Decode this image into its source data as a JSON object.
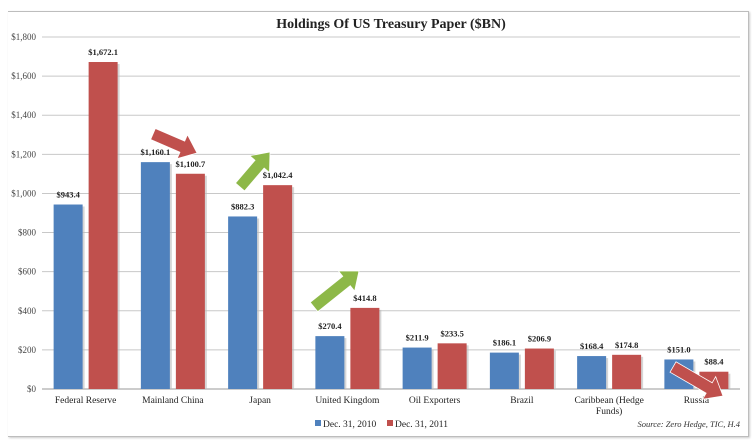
{
  "chart_data": {
    "type": "bar",
    "title": "Holdings Of US Treasury Paper ($BN)",
    "xlabel": "",
    "ylabel": "",
    "ylim": [
      0,
      1800
    ],
    "yticks": [
      0,
      200,
      400,
      600,
      800,
      1000,
      1200,
      1400,
      1600,
      1800
    ],
    "ytick_labels": [
      "$0",
      "$200",
      "$400",
      "$600",
      "$800",
      "$1,000",
      "$1,200",
      "$1,400",
      "$1,600",
      "$1,800"
    ],
    "grid": true,
    "categories": [
      "Federal Reserve",
      "Mainland China",
      "Japan",
      "United Kingdom",
      "Oil Exporters",
      "Brazil",
      "Caribbean (Hedge Funds)",
      "Russia"
    ],
    "category_lines": [
      [
        "Federal Reserve"
      ],
      [
        "Mainland China"
      ],
      [
        "Japan"
      ],
      [
        "United Kingdom"
      ],
      [
        "Oil Exporters"
      ],
      [
        "Brazil"
      ],
      [
        "Caribbean (Hedge",
        "Funds)"
      ],
      [
        "Russia"
      ]
    ],
    "series": [
      {
        "name": "Dec. 31, 2010",
        "color": "#4f81bd",
        "values": [
          943.4,
          1160.1,
          882.3,
          270.4,
          211.9,
          186.1,
          168.4,
          151.0
        ],
        "labels": [
          "$943.4",
          "$1,160.1",
          "$882.3",
          "$270.4",
          "$211.9",
          "$186.1",
          "$168.4",
          "$151.0"
        ]
      },
      {
        "name": "Dec. 31, 2011",
        "color": "#c0504d",
        "values": [
          1672.1,
          1100.7,
          1042.4,
          414.8,
          233.5,
          206.9,
          174.8,
          88.4
        ],
        "labels": [
          "$1,672.1",
          "$1,100.7",
          "$1,042.4",
          "$414.8",
          "$233.5",
          "$206.9",
          "$174.8",
          "$88.4"
        ]
      }
    ],
    "annotations": [
      {
        "type": "arrow",
        "direction": "down",
        "category": "Mainland China",
        "color": "#c0504d"
      },
      {
        "type": "arrow",
        "direction": "up",
        "category": "Japan",
        "color": "#8db848"
      },
      {
        "type": "arrow",
        "direction": "up",
        "category": "United Kingdom",
        "color": "#8db848"
      },
      {
        "type": "arrow",
        "direction": "down",
        "category": "Russia",
        "color": "#c0504d"
      }
    ],
    "legend_position": "bottom",
    "source": "Source: Zero Hedge, TIC, H.4"
  }
}
